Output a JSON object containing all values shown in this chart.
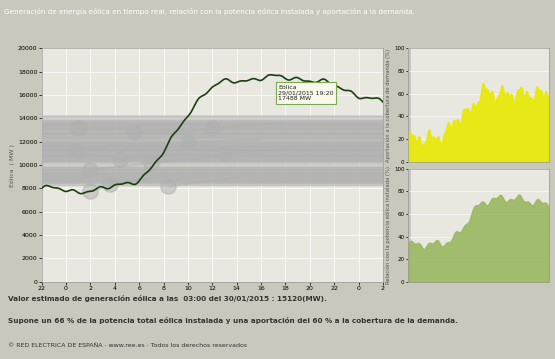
{
  "title": "Generación de energía eólica en tiempo real, relación con la potencia eólica instalada y aportación a la demanda.",
  "title_color": "#ffffff",
  "title_bg": "#5a7a6a",
  "bg_color": "#c8c8bc",
  "plot_bg": "#e8e8e0",
  "footer_lines": [
    "Valor estimado de generación eólica a las  03:00 del 30/01/2015 : 15120(MW).",
    "Supone un 66 % de la potencia total eólica instalada y una aportación del 60 % a la cobertura de la demanda.",
    "© RED ELECTRICA DE ESPAÑA · www.ree.es · Todos los derechos reservados"
  ],
  "x_ticks": [
    "22",
    "0",
    "2",
    "4",
    "6",
    "8",
    "10",
    "12",
    "14",
    "16",
    "18",
    "20",
    "22",
    "0",
    "2"
  ],
  "y_main_ticks": [
    0,
    2000,
    4000,
    6000,
    8000,
    10000,
    12000,
    14000,
    16000,
    18000,
    20000
  ],
  "ylabel_main": "Eólica  ( MW )",
  "ylabel_right1": "Aportación a la cobertura de demanda (%)",
  "ylabel_right2": "Relación con la potencia eólica instalada (%)",
  "tooltip_text": "Eólica\n29/01/2015 19:20\n17488 MW",
  "tooltip_color": "#7aaa50",
  "line_color": "#1a4010",
  "line_width": 1.2,
  "fill_color_yellow": "#e8e800",
  "fill_color_green": "#9ab860",
  "circle_color": "#b0b0b0",
  "circle_alpha": 0.55,
  "connector_alpha": 0.45
}
